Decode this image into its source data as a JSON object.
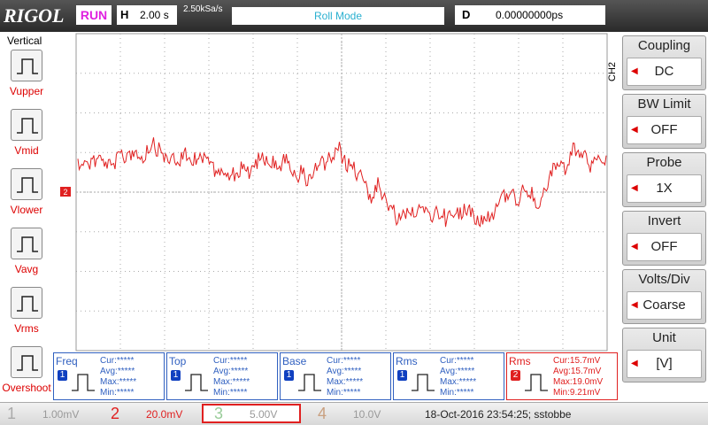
{
  "header": {
    "brand": "RIGOL",
    "status": "RUN",
    "timebase_label": "H",
    "timebase": "2.00 s",
    "sample_rate": "2.50kSa/s",
    "mode": "Roll Mode",
    "delay_label": "D",
    "delay": "0.00000000ps"
  },
  "left_menu": {
    "title": "Vertical",
    "items": [
      "Vupper",
      "Vmid",
      "Vlower",
      "Vavg",
      "Vrms",
      "Overshoot"
    ]
  },
  "right_menu": {
    "channel": "CH2",
    "items": [
      {
        "label": "Coupling",
        "value": "DC"
      },
      {
        "label": "BW Limit",
        "value": "OFF"
      },
      {
        "label": "Probe",
        "value": "1X"
      },
      {
        "label": "Invert",
        "value": "OFF"
      },
      {
        "label": "Volts/Div",
        "value": "Coarse"
      },
      {
        "label": "Unit",
        "value": "[V]"
      }
    ]
  },
  "channel_marker": "2",
  "measurements": [
    {
      "name": "Freq",
      "channel": "1",
      "lines": [
        "Cur:*****",
        "Avg:*****",
        "Max:*****",
        "Min:*****"
      ]
    },
    {
      "name": "Top",
      "channel": "1",
      "lines": [
        "Cur:*****",
        "Avg:*****",
        "Max:*****",
        "Min:*****"
      ]
    },
    {
      "name": "Base",
      "channel": "1",
      "lines": [
        "Cur:*****",
        "Avg:*****",
        "Max:*****",
        "Min:*****"
      ]
    },
    {
      "name": "Rms",
      "channel": "1",
      "lines": [
        "Cur:*****",
        "Avg:*****",
        "Max:*****",
        "Min:*****"
      ]
    },
    {
      "name": "Rms",
      "channel": "2",
      "lines": [
        "Cur:15.7mV",
        "Avg:15.7mV",
        "Max:19.0mV",
        "Min:9.21mV"
      ]
    }
  ],
  "status_bar": {
    "channels": [
      {
        "number": "1",
        "scale": "1.00mV"
      },
      {
        "number": "2",
        "scale": "20.0mV"
      },
      {
        "number": "3",
        "scale": "5.00V"
      },
      {
        "number": "4",
        "scale": "10.0V"
      }
    ],
    "timestamp": "18-Oct-2016 23:54:25; sstobbe"
  }
}
